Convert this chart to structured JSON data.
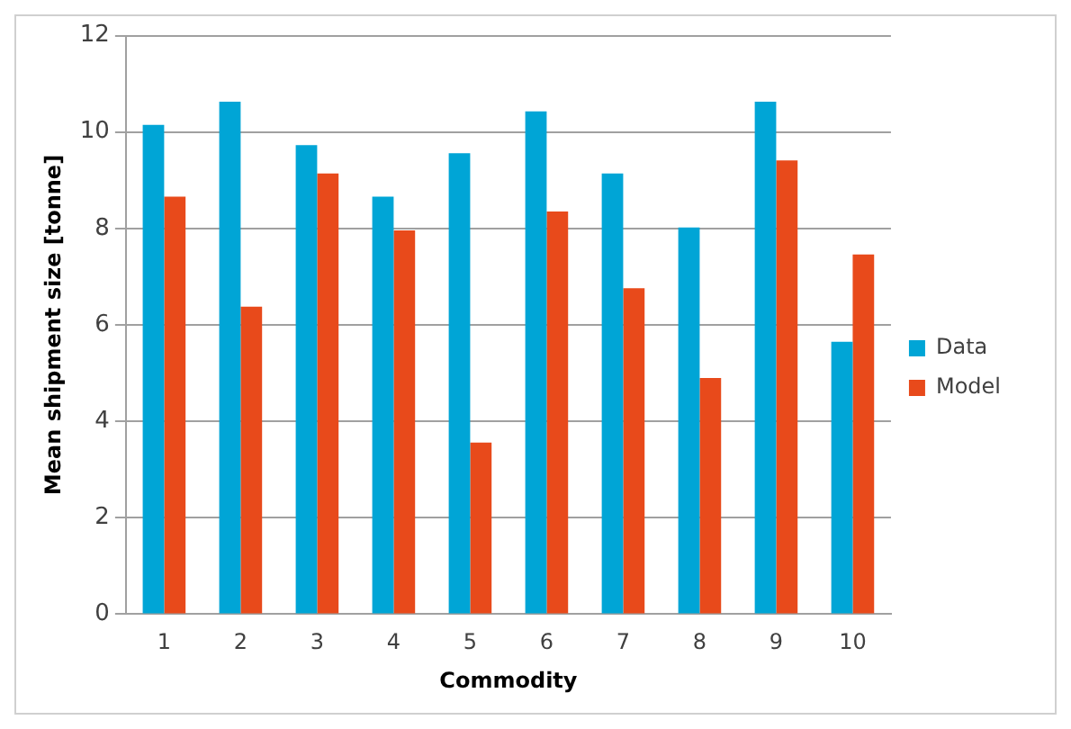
{
  "chart_data": {
    "type": "bar",
    "xlabel": "Commodity",
    "ylabel": "Mean shipment size [tonne]",
    "categories": [
      "1",
      "2",
      "3",
      "4",
      "5",
      "6",
      "7",
      "8",
      "9",
      "10"
    ],
    "series": [
      {
        "name": "Data",
        "color": "#00a5d6",
        "values": [
          10.15,
          10.63,
          9.73,
          8.66,
          9.56,
          10.43,
          9.14,
          8.02,
          10.63,
          5.65
        ]
      },
      {
        "name": "Model",
        "color": "#e84a1b",
        "values": [
          8.66,
          6.38,
          9.14,
          7.96,
          3.56,
          8.35,
          6.76,
          4.9,
          9.41,
          7.46
        ]
      }
    ],
    "ylim": [
      0,
      12
    ],
    "yticks": [
      0,
      2,
      4,
      6,
      8,
      10,
      12
    ],
    "grid": "y",
    "legend": "right"
  }
}
